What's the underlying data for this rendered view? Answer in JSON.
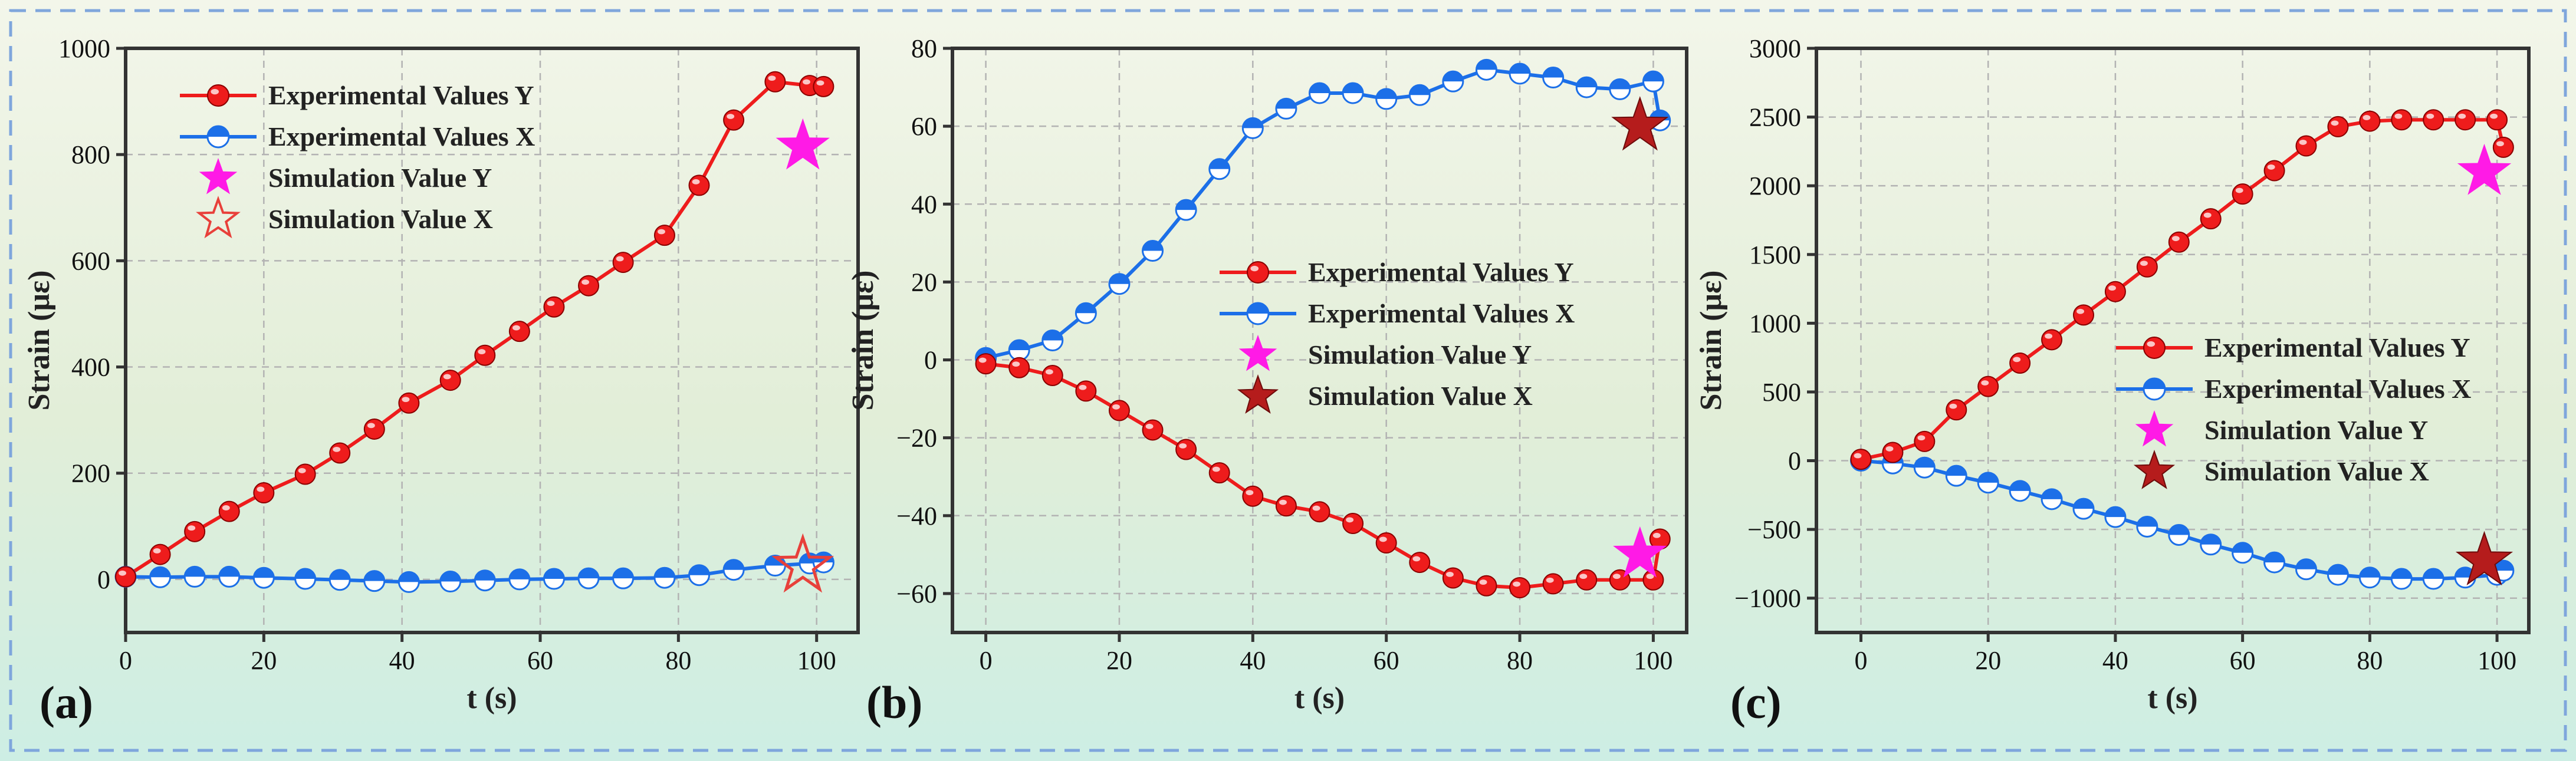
{
  "colors": {
    "series_y": "#ee1c1c",
    "series_x": "#1c6fe8",
    "sim_y": "#ff1ae6",
    "sim_x_a": "#e8403a",
    "sim_x_bc": "#b51c1c",
    "border": "#7fa6dc",
    "bg_top": "#f3f6ea",
    "bg_bottom": "#cdeee4"
  },
  "chart_data": [
    {
      "type": "line",
      "panel_label": "(a)",
      "xlabel": "t (s)",
      "ylabel": "Strain (με)",
      "xlim": [
        0,
        106
      ],
      "ylim": [
        -100,
        1000
      ],
      "xticks": [
        0,
        20,
        40,
        60,
        80,
        100
      ],
      "yticks": [
        0,
        200,
        400,
        600,
        800,
        1000
      ],
      "legend_position": "top-left",
      "series": [
        {
          "name": "Experimental Values Y",
          "x": [
            0,
            5,
            10,
            15,
            20,
            26,
            31,
            36,
            41,
            47,
            52,
            57,
            62,
            67,
            72,
            78,
            83,
            88,
            94,
            99,
            101
          ],
          "y": [
            5,
            47,
            90,
            128,
            163,
            198,
            238,
            283,
            332,
            375,
            422,
            467,
            513,
            553,
            597,
            648,
            742,
            865,
            937,
            930,
            928
          ]
        },
        {
          "name": "Experimental Values X",
          "x": [
            0,
            5,
            10,
            15,
            20,
            26,
            31,
            36,
            41,
            47,
            52,
            57,
            62,
            67,
            72,
            78,
            83,
            88,
            94,
            99,
            101
          ],
          "y": [
            5,
            4,
            5,
            5,
            3,
            1,
            -1,
            -3,
            -5,
            -4,
            -2,
            0,
            1,
            2,
            2,
            3,
            8,
            18,
            26,
            30,
            32
          ]
        }
      ],
      "simulation": [
        {
          "name": "Simulation Value Y",
          "x": 98,
          "y": 815
        },
        {
          "name": "Simulation Value X",
          "x": 98,
          "y": 25
        }
      ]
    },
    {
      "type": "line",
      "panel_label": "(b)",
      "xlabel": "t (s)",
      "ylabel": "Strain (με)",
      "xlim": [
        -5,
        105
      ],
      "ylim": [
        -70,
        80
      ],
      "xticks": [
        0,
        20,
        40,
        60,
        80,
        100
      ],
      "yticks": [
        -60,
        -40,
        -20,
        0,
        20,
        40,
        60,
        80
      ],
      "legend_position": "center",
      "series": [
        {
          "name": "Experimental Values Y",
          "x": [
            0,
            5,
            10,
            15,
            20,
            25,
            30,
            35,
            40,
            45,
            50,
            55,
            60,
            65,
            70,
            75,
            80,
            85,
            90,
            95,
            100,
            101
          ],
          "y": [
            -1,
            -2,
            -4,
            -8,
            -13,
            -18,
            -23,
            -29,
            -35,
            -37.5,
            -39,
            -42,
            -47,
            -52,
            -56,
            -58,
            -58.5,
            -57.5,
            -56.5,
            -56.5,
            -56.5,
            -46
          ]
        },
        {
          "name": "Experimental Values X",
          "x": [
            0,
            5,
            10,
            15,
            20,
            25,
            30,
            35,
            40,
            45,
            50,
            55,
            60,
            65,
            70,
            75,
            80,
            85,
            90,
            95,
            100,
            101
          ],
          "y": [
            0.5,
            2.5,
            5,
            12,
            19.5,
            28,
            38.5,
            49,
            59.5,
            64.5,
            68.5,
            68.5,
            67,
            68,
            71.5,
            74.5,
            73.5,
            72.5,
            70,
            69.5,
            71.5,
            61.5
          ]
        }
      ],
      "simulation": [
        {
          "name": "Simulation Value Y",
          "x": 98,
          "y": -50
        },
        {
          "name": "Simulation Value X",
          "x": 98,
          "y": 60
        }
      ]
    },
    {
      "type": "line",
      "panel_label": "(c)",
      "xlabel": "t (s)",
      "ylabel": "Strain (με)",
      "xlim": [
        -7,
        105
      ],
      "ylim": [
        -1250,
        3000
      ],
      "xticks": [
        0,
        20,
        40,
        60,
        80,
        100
      ],
      "yticks": [
        -1000,
        -500,
        0,
        500,
        1000,
        1500,
        2000,
        2500,
        3000
      ],
      "legend_position": "center-right",
      "series": [
        {
          "name": "Experimental Values Y",
          "x": [
            0,
            5,
            10,
            15,
            20,
            25,
            30,
            35,
            40,
            45,
            50,
            55,
            60,
            65,
            70,
            75,
            80,
            85,
            90,
            95,
            100,
            101
          ],
          "y": [
            10,
            60,
            140,
            370,
            540,
            710,
            880,
            1060,
            1230,
            1410,
            1590,
            1760,
            1940,
            2110,
            2290,
            2430,
            2470,
            2480,
            2480,
            2480,
            2480,
            2280
          ]
        },
        {
          "name": "Experimental Values X",
          "x": [
            0,
            5,
            10,
            15,
            20,
            25,
            30,
            35,
            40,
            45,
            50,
            55,
            60,
            65,
            70,
            75,
            80,
            85,
            90,
            95,
            100,
            101
          ],
          "y": [
            0,
            -20,
            -50,
            -110,
            -160,
            -220,
            -280,
            -350,
            -410,
            -480,
            -540,
            -610,
            -670,
            -740,
            -790,
            -830,
            -850,
            -860,
            -860,
            -850,
            -830,
            -800
          ]
        }
      ],
      "simulation": [
        {
          "name": "Simulation Value Y",
          "x": 98,
          "y": 2100
        },
        {
          "name": "Simulation Value X",
          "x": 98,
          "y": -730
        }
      ]
    }
  ]
}
